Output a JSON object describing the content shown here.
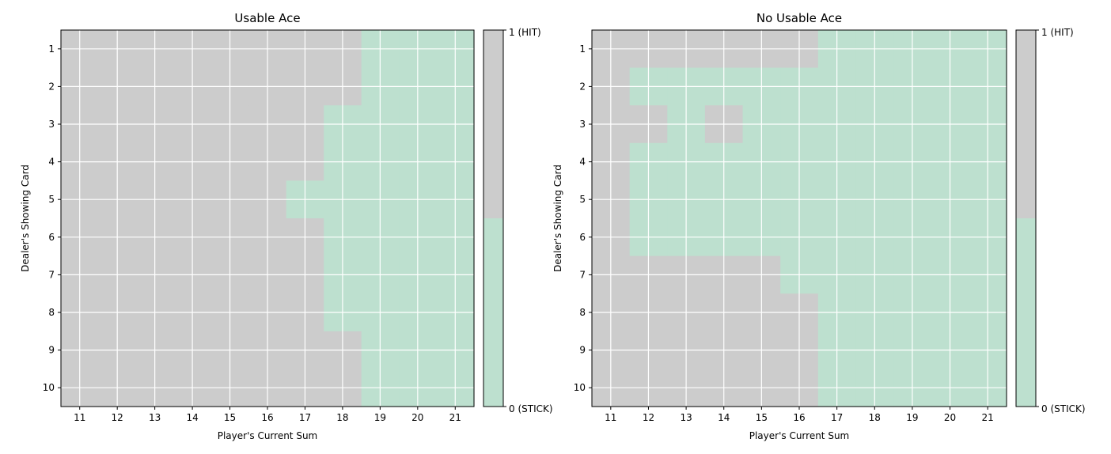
{
  "chart_data": [
    {
      "type": "heatmap",
      "title": "Usable Ace",
      "xlabel": "Player's Current Sum",
      "ylabel": "Dealer's Showing Card",
      "x": [
        11,
        12,
        13,
        14,
        15,
        16,
        17,
        18,
        19,
        20,
        21
      ],
      "y": [
        1,
        2,
        3,
        4,
        5,
        6,
        7,
        8,
        9,
        10
      ],
      "grid": true,
      "colorbar": {
        "ticks": [
          "1 (HIT)",
          "0 (STICK)"
        ]
      },
      "values": [
        [
          1,
          1,
          1,
          1,
          1,
          1,
          1,
          1,
          0,
          0,
          0
        ],
        [
          1,
          1,
          1,
          1,
          1,
          1,
          1,
          1,
          0,
          0,
          0
        ],
        [
          1,
          1,
          1,
          1,
          1,
          1,
          1,
          0,
          0,
          0,
          0
        ],
        [
          1,
          1,
          1,
          1,
          1,
          1,
          1,
          0,
          0,
          0,
          0
        ],
        [
          1,
          1,
          1,
          1,
          1,
          1,
          0,
          0,
          0,
          0,
          0
        ],
        [
          1,
          1,
          1,
          1,
          1,
          1,
          1,
          0,
          0,
          0,
          0
        ],
        [
          1,
          1,
          1,
          1,
          1,
          1,
          1,
          0,
          0,
          0,
          0
        ],
        [
          1,
          1,
          1,
          1,
          1,
          1,
          1,
          0,
          0,
          0,
          0
        ],
        [
          1,
          1,
          1,
          1,
          1,
          1,
          1,
          1,
          0,
          0,
          0
        ],
        [
          1,
          1,
          1,
          1,
          1,
          1,
          1,
          1,
          0,
          0,
          0
        ]
      ]
    },
    {
      "type": "heatmap",
      "title": "No Usable Ace",
      "xlabel": "Player's Current Sum",
      "ylabel": "Dealer's Showing Card",
      "x": [
        11,
        12,
        13,
        14,
        15,
        16,
        17,
        18,
        19,
        20,
        21
      ],
      "y": [
        1,
        2,
        3,
        4,
        5,
        6,
        7,
        8,
        9,
        10
      ],
      "grid": true,
      "colorbar": {
        "ticks": [
          "1 (HIT)",
          "0 (STICK)"
        ]
      },
      "values": [
        [
          1,
          1,
          1,
          1,
          1,
          1,
          0,
          0,
          0,
          0,
          0
        ],
        [
          1,
          0,
          0,
          0,
          0,
          0,
          0,
          0,
          0,
          0,
          0
        ],
        [
          1,
          1,
          0,
          1,
          0,
          0,
          0,
          0,
          0,
          0,
          0
        ],
        [
          1,
          0,
          0,
          0,
          0,
          0,
          0,
          0,
          0,
          0,
          0
        ],
        [
          1,
          0,
          0,
          0,
          0,
          0,
          0,
          0,
          0,
          0,
          0
        ],
        [
          1,
          0,
          0,
          0,
          0,
          0,
          0,
          0,
          0,
          0,
          0
        ],
        [
          1,
          1,
          1,
          1,
          1,
          0,
          0,
          0,
          0,
          0,
          0
        ],
        [
          1,
          1,
          1,
          1,
          1,
          1,
          0,
          0,
          0,
          0,
          0
        ],
        [
          1,
          1,
          1,
          1,
          1,
          1,
          0,
          0,
          0,
          0,
          0
        ],
        [
          1,
          1,
          1,
          1,
          1,
          1,
          0,
          0,
          0,
          0,
          0
        ]
      ]
    }
  ],
  "colors": {
    "hit": "#cccccc",
    "stick": "#bde0cf",
    "grid": "#ffffff",
    "frame": "#000000"
  }
}
